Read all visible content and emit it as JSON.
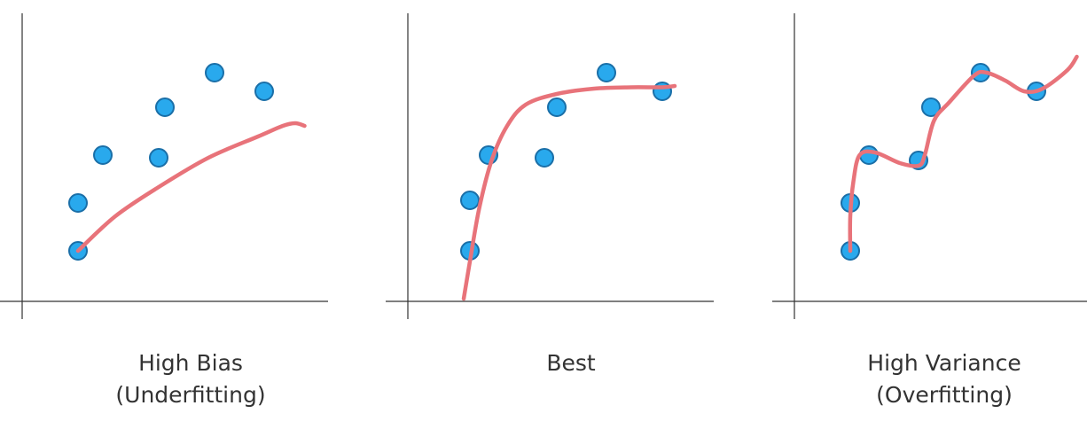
{
  "colors": {
    "point_fill": "#29a9ed",
    "point_stroke": "#1a6fa8",
    "curve": "#e8737a",
    "axis": "#333333",
    "text": "#333333"
  },
  "chart_data": [
    {
      "type": "scatter",
      "title_lines": [
        "High Bias",
        "(Underfitting)"
      ],
      "points": [
        {
          "x": 0.9,
          "y": 1.9
        },
        {
          "x": 0.9,
          "y": 3.7
        },
        {
          "x": 1.3,
          "y": 5.5
        },
        {
          "x": 2.2,
          "y": 5.4
        },
        {
          "x": 2.3,
          "y": 7.3
        },
        {
          "x": 3.1,
          "y": 8.6
        },
        {
          "x": 3.9,
          "y": 7.9
        }
      ],
      "fit_curve": [
        [
          0.9,
          1.9
        ],
        [
          1.5,
          3.2
        ],
        [
          2.2,
          4.3
        ],
        [
          3.0,
          5.4
        ],
        [
          3.8,
          6.2
        ],
        [
          4.2,
          6.6
        ],
        [
          4.4,
          6.7
        ],
        [
          4.55,
          6.6
        ]
      ],
      "grid": false,
      "xlim": [
        -0.3,
        4.9
      ],
      "ylim": [
        -0.3,
        10.7
      ]
    },
    {
      "type": "scatter",
      "title_lines": [
        "Best"
      ],
      "points": [
        {
          "x": 1.0,
          "y": 1.9
        },
        {
          "x": 1.0,
          "y": 3.8
        },
        {
          "x": 1.3,
          "y": 5.5
        },
        {
          "x": 2.2,
          "y": 5.4
        },
        {
          "x": 2.4,
          "y": 7.3
        },
        {
          "x": 3.2,
          "y": 8.6
        },
        {
          "x": 4.1,
          "y": 7.9
        }
      ],
      "fit_curve": [
        [
          0.9,
          0.1
        ],
        [
          1.0,
          1.5
        ],
        [
          1.15,
          3.5
        ],
        [
          1.35,
          5.3
        ],
        [
          1.6,
          6.6
        ],
        [
          1.9,
          7.4
        ],
        [
          2.4,
          7.8
        ],
        [
          3.0,
          8.0
        ],
        [
          3.6,
          8.05
        ],
        [
          4.1,
          8.05
        ],
        [
          4.3,
          8.1
        ]
      ],
      "grid": false,
      "xlim": [
        -0.3,
        4.9
      ],
      "ylim": [
        -0.3,
        10.7
      ]
    },
    {
      "type": "scatter",
      "title_lines": [
        "High Variance",
        "(Overfitting)"
      ],
      "points": [
        {
          "x": 0.9,
          "y": 1.9
        },
        {
          "x": 0.9,
          "y": 3.7
        },
        {
          "x": 1.2,
          "y": 5.5
        },
        {
          "x": 2.0,
          "y": 5.3
        },
        {
          "x": 2.2,
          "y": 7.3
        },
        {
          "x": 3.0,
          "y": 8.6
        },
        {
          "x": 3.9,
          "y": 7.9
        }
      ],
      "fit_curve": [
        [
          0.9,
          1.9
        ],
        [
          0.9,
          3.2
        ],
        [
          0.95,
          4.5
        ],
        [
          1.05,
          5.5
        ],
        [
          1.3,
          5.6
        ],
        [
          1.7,
          5.2
        ],
        [
          2.0,
          5.1
        ],
        [
          2.1,
          5.5
        ],
        [
          2.25,
          6.8
        ],
        [
          2.5,
          7.5
        ],
        [
          2.9,
          8.5
        ],
        [
          3.1,
          8.6
        ],
        [
          3.4,
          8.3
        ],
        [
          3.7,
          7.9
        ],
        [
          4.0,
          8.0
        ],
        [
          4.4,
          8.7
        ],
        [
          4.55,
          9.2
        ]
      ],
      "grid": false,
      "xlim": [
        -0.3,
        4.9
      ],
      "ylim": [
        -0.3,
        10.7
      ]
    }
  ]
}
